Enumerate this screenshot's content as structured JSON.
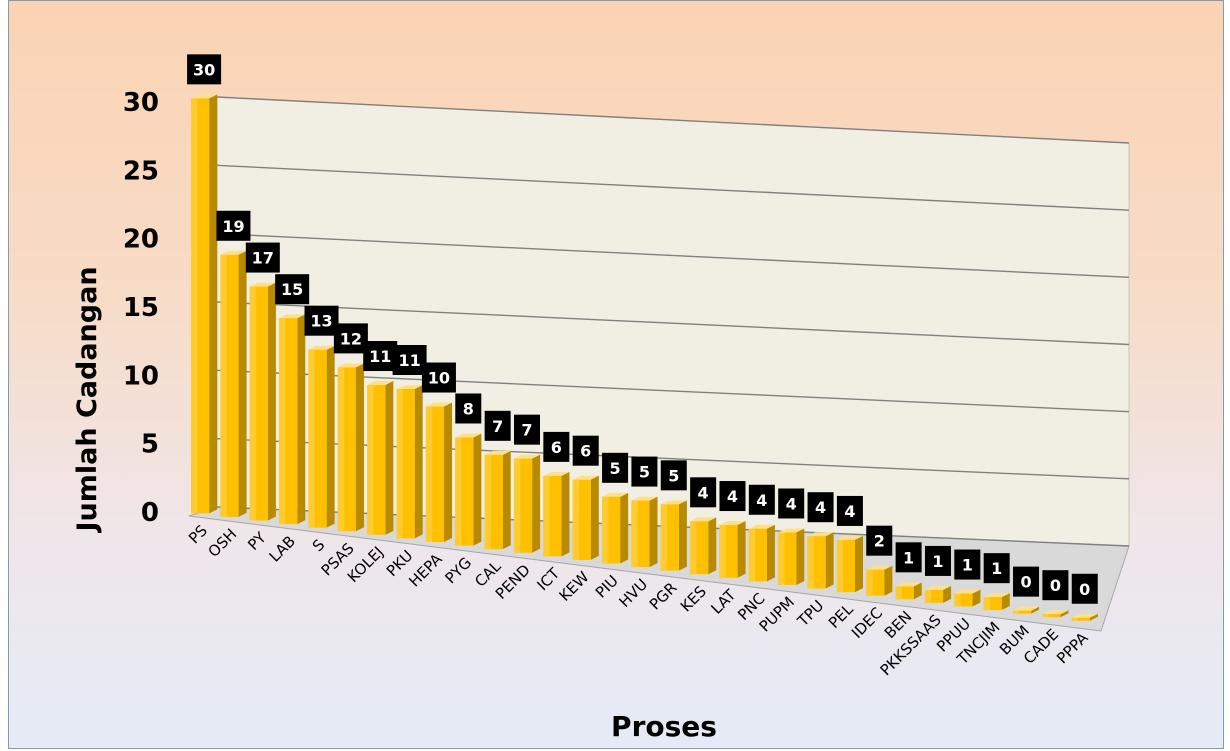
{
  "chart_data": {
    "type": "bar",
    "title": "",
    "xlabel": "Proses",
    "ylabel": "Jumlah Cadangan",
    "ylim": [
      0,
      30
    ],
    "yticks": [
      0,
      5,
      10,
      15,
      20,
      25,
      30
    ],
    "grid": true,
    "legend": "none",
    "style": "3d",
    "bar_color": "#ffc000",
    "categories": [
      "PS",
      "OSH",
      "PY",
      "LAB",
      "S",
      "PSAS",
      "KOLEJ",
      "PKU",
      "HEPA",
      "PYG",
      "CAL",
      "PEND",
      "ICT",
      "KEW",
      "PIU",
      "HVU",
      "PGR",
      "KES",
      "LAT",
      "PNC",
      "PUPM",
      "TPU",
      "PEL",
      "IDEC",
      "BEN",
      "PKKSSAAS",
      "PPUU",
      "TNCJIM",
      "BUM",
      "CADE",
      "PPPA"
    ],
    "values": [
      30,
      19,
      17,
      15,
      13,
      12,
      11,
      11,
      10,
      8,
      7,
      7,
      6,
      6,
      5,
      5,
      5,
      4,
      4,
      4,
      4,
      4,
      4,
      2,
      1,
      1,
      1,
      1,
      0,
      0,
      0
    ]
  }
}
